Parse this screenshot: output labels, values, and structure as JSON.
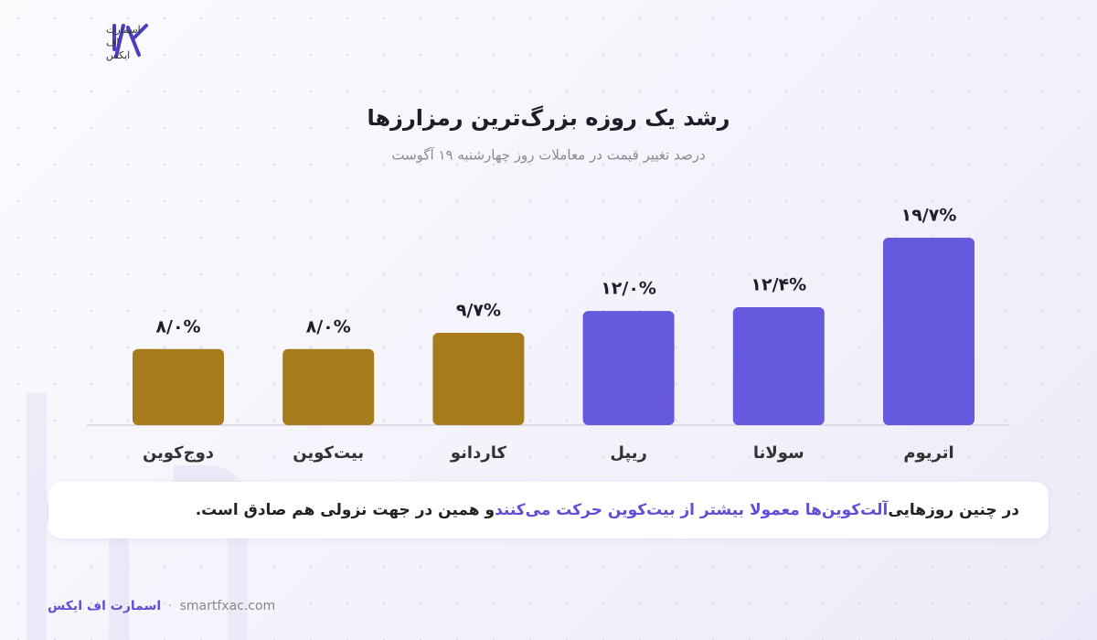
{
  "logo": {
    "lines": [
      "اسمارت",
      "اف",
      "ایکس"
    ]
  },
  "chart_data": {
    "type": "bar",
    "title": "رشد یک روزه بزرگ‌ترین رمزارزها",
    "subtitle": "درصد تغییر قیمت در معاملات روز چهارشنبه ۱۹ آگوست",
    "categories": [
      "اتریوم",
      "سولانا",
      "ریپل",
      "کاردانو",
      "بیت‌کوین",
      "دوج‌کوین"
    ],
    "values": [
      19.7,
      12.4,
      12.0,
      9.7,
      8.0,
      8.0
    ],
    "value_labels": [
      "۱۹/۷%",
      "۱۲/۴%",
      "۱۲/۰%",
      "۹/۷%",
      "۸/۰%",
      "۸/۰%"
    ],
    "colors": [
      "#6659de",
      "#6659de",
      "#6659de",
      "#a57b1b",
      "#a57b1b",
      "#a57b1b"
    ],
    "direction": "rtl"
  },
  "note": {
    "before": "در چنین روزهایی ",
    "highlight": "آلت‌کوین‌ها معمولا بیشتر از بیت‌کوین حرکت می‌کنند",
    "after": " و همین در جهت نزولی هم صادق است."
  },
  "footer": {
    "brand": "اسمارت اف ایکس",
    "site": "smartfxac.com"
  }
}
